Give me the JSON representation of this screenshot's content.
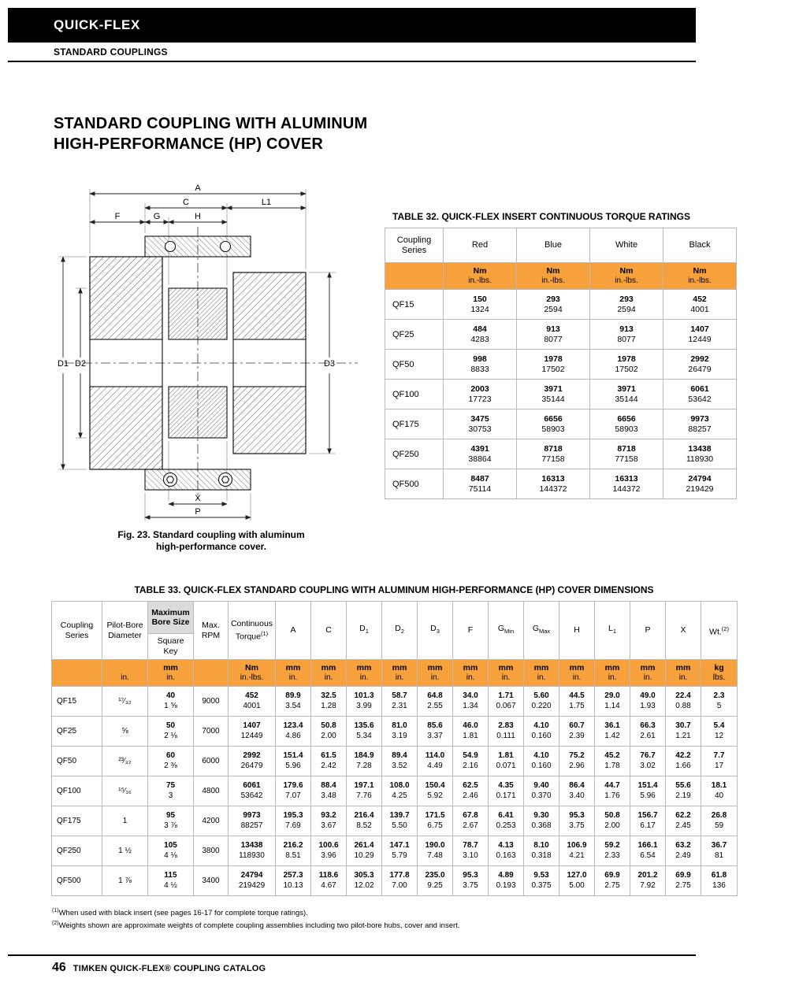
{
  "colors": {
    "accent_orange": "#F6A13B",
    "header_gray": "#DBDBDB"
  },
  "header": {
    "brand": "QUICK-FLEX",
    "section": "STANDARD COUPLINGS"
  },
  "title_lines": [
    "STANDARD COUPLING WITH ALUMINUM",
    "HIGH-PERFORMANCE (HP) COVER"
  ],
  "figure": {
    "caption": [
      "Fig. 23. Standard coupling with aluminum",
      "high-performance cover."
    ],
    "labels": {
      "a": "A",
      "c": "C",
      "l1": "L1",
      "f": "F",
      "g": "G",
      "h": "H",
      "d1": "D1",
      "d2": "D2",
      "d3": "D3",
      "x": "X",
      "p": "P"
    }
  },
  "table32": {
    "title": "TABLE 32. QUICK-FLEX INSERT CONTINUOUS TORQUE RATINGS",
    "series_header": [
      "Coupling",
      "Series"
    ],
    "color_columns": [
      "Red",
      "Blue",
      "White",
      "Black"
    ],
    "units": {
      "top": "Nm",
      "bottom": "in.-lbs."
    },
    "rows": [
      {
        "series": "QF15",
        "values": [
          [
            "150",
            "1324"
          ],
          [
            "293",
            "2594"
          ],
          [
            "293",
            "2594"
          ],
          [
            "452",
            "4001"
          ]
        ]
      },
      {
        "series": "QF25",
        "values": [
          [
            "484",
            "4283"
          ],
          [
            "913",
            "8077"
          ],
          [
            "913",
            "8077"
          ],
          [
            "1407",
            "12449"
          ]
        ]
      },
      {
        "series": "QF50",
        "values": [
          [
            "998",
            "8833"
          ],
          [
            "1978",
            "17502"
          ],
          [
            "1978",
            "17502"
          ],
          [
            "2992",
            "26479"
          ]
        ]
      },
      {
        "series": "QF100",
        "values": [
          [
            "2003",
            "17723"
          ],
          [
            "3971",
            "35144"
          ],
          [
            "3971",
            "35144"
          ],
          [
            "6061",
            "53642"
          ]
        ]
      },
      {
        "series": "QF175",
        "values": [
          [
            "3475",
            "30753"
          ],
          [
            "6656",
            "58903"
          ],
          [
            "6656",
            "58903"
          ],
          [
            "9973",
            "88257"
          ]
        ]
      },
      {
        "series": "QF250",
        "values": [
          [
            "4391",
            "38864"
          ],
          [
            "8718",
            "77158"
          ],
          [
            "8718",
            "77158"
          ],
          [
            "13438",
            "118930"
          ]
        ]
      },
      {
        "series": "QF500",
        "values": [
          [
            "8487",
            "75114"
          ],
          [
            "16313",
            "144372"
          ],
          [
            "16313",
            "144372"
          ],
          [
            "24794",
            "219429"
          ]
        ]
      }
    ]
  },
  "table33": {
    "title": "TABLE 33. QUICK-FLEX STANDARD COUPLING WITH ALUMINUM HIGH-PERFORMANCE (HP) COVER DIMENSIONS",
    "head": {
      "coupling_series": [
        "Coupling",
        "Series"
      ],
      "pilot_bore": [
        "Pilot-Bore",
        "Diameter"
      ],
      "max_bore": [
        "Maximum",
        "Bore Size"
      ],
      "square_key": [
        "Square",
        "Key"
      ],
      "max_rpm": [
        "Max.",
        "RPM"
      ],
      "torque": [
        "Continuous",
        "Torque"
      ],
      "torque_sup": "(1)",
      "dims": [
        "A",
        "C",
        "D|1",
        "D|2",
        "D|3",
        "F",
        "G|Min",
        "G|Max",
        "H",
        "L|1",
        "P",
        "X"
      ],
      "wt": "Wt.",
      "wt_sup": "(2)"
    },
    "units": {
      "pilot": "in.",
      "metric_top": "mm",
      "metric_bottom": "in.",
      "torque_top": "Nm",
      "torque_bottom": "in.-lbs.",
      "wt_top": "kg",
      "wt_bottom": "lbs."
    },
    "rows": [
      {
        "series": "QF15",
        "pilot": "¹⁷⁄₃₂",
        "bore": [
          "40",
          "1 ⅝"
        ],
        "rpm": "9000",
        "torque": [
          "452",
          "4001"
        ],
        "dims": [
          [
            "89.9",
            "3.54"
          ],
          [
            "32.5",
            "1.28"
          ],
          [
            "101.3",
            "3.99"
          ],
          [
            "58.7",
            "2.31"
          ],
          [
            "64.8",
            "2.55"
          ],
          [
            "34.0",
            "1.34"
          ],
          [
            "1.71",
            "0.067"
          ],
          [
            "5.60",
            "0.220"
          ],
          [
            "44.5",
            "1.75"
          ],
          [
            "29.0",
            "1.14"
          ],
          [
            "49.0",
            "1.93"
          ],
          [
            "22.4",
            "0.88"
          ]
        ],
        "wt": [
          "2.3",
          "5"
        ]
      },
      {
        "series": "QF25",
        "pilot": "⅝",
        "bore": [
          "50",
          "2 ⅛"
        ],
        "rpm": "7000",
        "torque": [
          "1407",
          "12449"
        ],
        "dims": [
          [
            "123.4",
            "4.86"
          ],
          [
            "50.8",
            "2.00"
          ],
          [
            "135.6",
            "5.34"
          ],
          [
            "81.0",
            "3.19"
          ],
          [
            "85.6",
            "3.37"
          ],
          [
            "46.0",
            "1.81"
          ],
          [
            "2.83",
            "0.111"
          ],
          [
            "4.10",
            "0.160"
          ],
          [
            "60.7",
            "2.39"
          ],
          [
            "36.1",
            "1.42"
          ],
          [
            "66.3",
            "2.61"
          ],
          [
            "30.7",
            "1.21"
          ]
        ],
        "wt": [
          "5.4",
          "12"
        ]
      },
      {
        "series": "QF50",
        "pilot": "²³⁄₃₂",
        "bore": [
          "60",
          "2 ⅜"
        ],
        "rpm": "6000",
        "torque": [
          "2992",
          "26479"
        ],
        "dims": [
          [
            "151.4",
            "5.96"
          ],
          [
            "61.5",
            "2.42"
          ],
          [
            "184.9",
            "7.28"
          ],
          [
            "89.4",
            "3.52"
          ],
          [
            "114.0",
            "4.49"
          ],
          [
            "54.9",
            "2.16"
          ],
          [
            "1.81",
            "0.071"
          ],
          [
            "4.10",
            "0.160"
          ],
          [
            "75.2",
            "2.96"
          ],
          [
            "45.2",
            "1.78"
          ],
          [
            "76.7",
            "3.02"
          ],
          [
            "42.2",
            "1.66"
          ]
        ],
        "wt": [
          "7.7",
          "17"
        ]
      },
      {
        "series": "QF100",
        "pilot": "¹⁵⁄₁₆",
        "bore": [
          "75",
          "3"
        ],
        "rpm": "4800",
        "torque": [
          "6061",
          "53642"
        ],
        "dims": [
          [
            "179.6",
            "7.07"
          ],
          [
            "88.4",
            "3.48"
          ],
          [
            "197.1",
            "7.76"
          ],
          [
            "108.0",
            "4.25"
          ],
          [
            "150.4",
            "5.92"
          ],
          [
            "62.5",
            "2.46"
          ],
          [
            "4.35",
            "0.171"
          ],
          [
            "9.40",
            "0.370"
          ],
          [
            "86.4",
            "3.40"
          ],
          [
            "44.7",
            "1.76"
          ],
          [
            "151.4",
            "5.96"
          ],
          [
            "55.6",
            "2.19"
          ]
        ],
        "wt": [
          "18.1",
          "40"
        ]
      },
      {
        "series": "QF175",
        "pilot": "1",
        "bore": [
          "95",
          "3 ⅞"
        ],
        "rpm": "4200",
        "torque": [
          "9973",
          "88257"
        ],
        "dims": [
          [
            "195.3",
            "7.69"
          ],
          [
            "93.2",
            "3.67"
          ],
          [
            "216.4",
            "8.52"
          ],
          [
            "139.7",
            "5.50"
          ],
          [
            "171.5",
            "6.75"
          ],
          [
            "67.8",
            "2.67"
          ],
          [
            "6.41",
            "0.253"
          ],
          [
            "9.30",
            "0.368"
          ],
          [
            "95.3",
            "3.75"
          ],
          [
            "50.8",
            "2.00"
          ],
          [
            "156.7",
            "6.17"
          ],
          [
            "62.2",
            "2.45"
          ]
        ],
        "wt": [
          "26.8",
          "59"
        ]
      },
      {
        "series": "QF250",
        "pilot": "1 ½",
        "bore": [
          "105",
          "4 ⅛"
        ],
        "rpm": "3800",
        "torque": [
          "13438",
          "118930"
        ],
        "dims": [
          [
            "216.2",
            "8.51"
          ],
          [
            "100.6",
            "3.96"
          ],
          [
            "261.4",
            "10.29"
          ],
          [
            "147.1",
            "5.79"
          ],
          [
            "190.0",
            "7.48"
          ],
          [
            "78.7",
            "3.10"
          ],
          [
            "4.13",
            "0.163"
          ],
          [
            "8.10",
            "0.318"
          ],
          [
            "106.9",
            "4.21"
          ],
          [
            "59.2",
            "2.33"
          ],
          [
            "166.1",
            "6.54"
          ],
          [
            "63.2",
            "2.49"
          ]
        ],
        "wt": [
          "36.7",
          "81"
        ]
      },
      {
        "series": "QF500",
        "pilot": "1 ⅞",
        "bore": [
          "115",
          "4 ½"
        ],
        "rpm": "3400",
        "torque": [
          "24794",
          "219429"
        ],
        "dims": [
          [
            "257.3",
            "10.13"
          ],
          [
            "118.6",
            "4.67"
          ],
          [
            "305.3",
            "12.02"
          ],
          [
            "177.8",
            "7.00"
          ],
          [
            "235.0",
            "9.25"
          ],
          [
            "95.3",
            "3.75"
          ],
          [
            "4.89",
            "0.193"
          ],
          [
            "9.53",
            "0.375"
          ],
          [
            "127.0",
            "5.00"
          ],
          [
            "69.9",
            "2.75"
          ],
          [
            "201.2",
            "7.92"
          ],
          [
            "69.9",
            "2.75"
          ]
        ],
        "wt": [
          "61.8",
          "136"
        ]
      }
    ]
  },
  "footnotes": [
    {
      "sup": "(1)",
      "text": "When used with black insert (see pages 16-17 for complete torque ratings)."
    },
    {
      "sup": "(2)",
      "text": "Weights shown are approximate weights of complete coupling assemblies including two pilot-bore hubs, cover and insert."
    }
  ],
  "footer": {
    "page_number": "46",
    "catalog_text": "TIMKEN QUICK-FLEX® COUPLING CATALOG"
  }
}
